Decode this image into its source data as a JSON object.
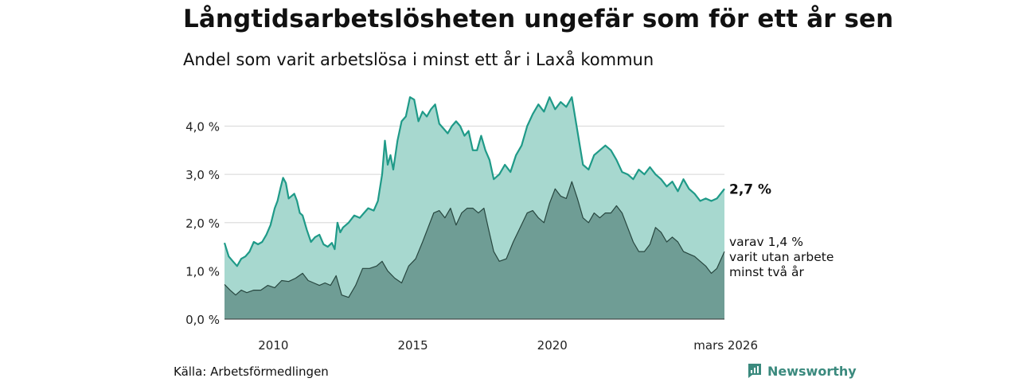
{
  "title": "Långtidsarbetslösheten ungefär som för ett år sen",
  "subtitle": "Andel som varit arbetslösa i minst ett år i Laxå kommun",
  "source": "Källa: Arbetsförmedlingen",
  "brand": "Newsworthy",
  "colors": {
    "upper_fill": "#a7d8cf",
    "upper_line": "#1f9a88",
    "lower_fill": "#6f9d95",
    "lower_line": "#27463f",
    "grid": "#dddddd",
    "brand": "#3b8a7e"
  },
  "chart_data": {
    "type": "area",
    "x_unit": "year (decimal)",
    "xlim": [
      2008.25,
      2026.17
    ],
    "ylim": [
      0,
      4.8
    ],
    "y_ticks": [
      0,
      1,
      2,
      3,
      4
    ],
    "y_tick_labels": [
      "0,0 %",
      "1,0 %",
      "2,0 %",
      "3,0 %",
      "4,0 %"
    ],
    "x_ticks": [
      2010,
      2015,
      2020,
      2026.17
    ],
    "x_tick_labels": [
      "2010",
      "2015",
      "2020",
      "mars 2026"
    ],
    "series": [
      {
        "name": "Minst ett år",
        "end_label": "2,7 %",
        "points": [
          [
            2008.25,
            1.58
          ],
          [
            2008.4,
            1.3
          ],
          [
            2008.55,
            1.2
          ],
          [
            2008.7,
            1.1
          ],
          [
            2008.85,
            1.25
          ],
          [
            2009.0,
            1.3
          ],
          [
            2009.15,
            1.4
          ],
          [
            2009.3,
            1.6
          ],
          [
            2009.45,
            1.55
          ],
          [
            2009.6,
            1.6
          ],
          [
            2009.75,
            1.75
          ],
          [
            2009.9,
            1.95
          ],
          [
            2010.05,
            2.3
          ],
          [
            2010.15,
            2.45
          ],
          [
            2010.25,
            2.7
          ],
          [
            2010.35,
            2.93
          ],
          [
            2010.45,
            2.82
          ],
          [
            2010.55,
            2.5
          ],
          [
            2010.65,
            2.55
          ],
          [
            2010.75,
            2.6
          ],
          [
            2010.85,
            2.45
          ],
          [
            2010.95,
            2.2
          ],
          [
            2011.05,
            2.15
          ],
          [
            2011.2,
            1.85
          ],
          [
            2011.35,
            1.6
          ],
          [
            2011.5,
            1.7
          ],
          [
            2011.65,
            1.75
          ],
          [
            2011.8,
            1.55
          ],
          [
            2011.95,
            1.5
          ],
          [
            2012.1,
            1.58
          ],
          [
            2012.2,
            1.45
          ],
          [
            2012.3,
            2.0
          ],
          [
            2012.4,
            1.8
          ],
          [
            2012.5,
            1.9
          ],
          [
            2012.7,
            2.0
          ],
          [
            2012.9,
            2.15
          ],
          [
            2013.1,
            2.1
          ],
          [
            2013.25,
            2.2
          ],
          [
            2013.4,
            2.3
          ],
          [
            2013.6,
            2.25
          ],
          [
            2013.75,
            2.45
          ],
          [
            2013.9,
            3.0
          ],
          [
            2014.0,
            3.7
          ],
          [
            2014.1,
            3.2
          ],
          [
            2014.2,
            3.4
          ],
          [
            2014.3,
            3.1
          ],
          [
            2014.45,
            3.7
          ],
          [
            2014.6,
            4.1
          ],
          [
            2014.75,
            4.2
          ],
          [
            2014.9,
            4.6
          ],
          [
            2015.05,
            4.55
          ],
          [
            2015.2,
            4.1
          ],
          [
            2015.35,
            4.3
          ],
          [
            2015.5,
            4.2
          ],
          [
            2015.65,
            4.35
          ],
          [
            2015.8,
            4.45
          ],
          [
            2015.95,
            4.05
          ],
          [
            2016.1,
            3.95
          ],
          [
            2016.25,
            3.85
          ],
          [
            2016.4,
            4.0
          ],
          [
            2016.55,
            4.1
          ],
          [
            2016.7,
            4.0
          ],
          [
            2016.85,
            3.8
          ],
          [
            2017.0,
            3.9
          ],
          [
            2017.15,
            3.5
          ],
          [
            2017.3,
            3.5
          ],
          [
            2017.45,
            3.8
          ],
          [
            2017.6,
            3.5
          ],
          [
            2017.75,
            3.3
          ],
          [
            2017.9,
            2.9
          ],
          [
            2018.1,
            3.0
          ],
          [
            2018.3,
            3.2
          ],
          [
            2018.5,
            3.05
          ],
          [
            2018.7,
            3.4
          ],
          [
            2018.9,
            3.6
          ],
          [
            2019.1,
            4.0
          ],
          [
            2019.3,
            4.25
          ],
          [
            2019.5,
            4.45
          ],
          [
            2019.7,
            4.3
          ],
          [
            2019.9,
            4.6
          ],
          [
            2020.1,
            4.35
          ],
          [
            2020.3,
            4.5
          ],
          [
            2020.5,
            4.4
          ],
          [
            2020.7,
            4.6
          ],
          [
            2020.9,
            3.9
          ],
          [
            2021.1,
            3.2
          ],
          [
            2021.3,
            3.1
          ],
          [
            2021.5,
            3.4
          ],
          [
            2021.7,
            3.5
          ],
          [
            2021.9,
            3.6
          ],
          [
            2022.1,
            3.5
          ],
          [
            2022.3,
            3.3
          ],
          [
            2022.5,
            3.05
          ],
          [
            2022.7,
            3.0
          ],
          [
            2022.9,
            2.9
          ],
          [
            2023.1,
            3.1
          ],
          [
            2023.3,
            3.0
          ],
          [
            2023.5,
            3.15
          ],
          [
            2023.7,
            3.0
          ],
          [
            2023.9,
            2.9
          ],
          [
            2024.1,
            2.75
          ],
          [
            2024.3,
            2.85
          ],
          [
            2024.5,
            2.65
          ],
          [
            2024.7,
            2.9
          ],
          [
            2024.9,
            2.7
          ],
          [
            2025.1,
            2.6
          ],
          [
            2025.3,
            2.45
          ],
          [
            2025.5,
            2.5
          ],
          [
            2025.7,
            2.45
          ],
          [
            2025.9,
            2.5
          ],
          [
            2026.17,
            2.7
          ]
        ]
      },
      {
        "name": "varav minst två år",
        "end_label": [
          "varav 1,4 %",
          "varit utan arbete",
          "minst två år"
        ],
        "points": [
          [
            2008.25,
            0.72
          ],
          [
            2008.45,
            0.6
          ],
          [
            2008.65,
            0.5
          ],
          [
            2008.85,
            0.6
          ],
          [
            2009.05,
            0.55
          ],
          [
            2009.3,
            0.6
          ],
          [
            2009.55,
            0.6
          ],
          [
            2009.8,
            0.7
          ],
          [
            2010.05,
            0.65
          ],
          [
            2010.3,
            0.8
          ],
          [
            2010.55,
            0.78
          ],
          [
            2010.8,
            0.85
          ],
          [
            2011.05,
            0.95
          ],
          [
            2011.25,
            0.8
          ],
          [
            2011.45,
            0.75
          ],
          [
            2011.65,
            0.7
          ],
          [
            2011.85,
            0.75
          ],
          [
            2012.05,
            0.7
          ],
          [
            2012.25,
            0.9
          ],
          [
            2012.45,
            0.5
          ],
          [
            2012.7,
            0.45
          ],
          [
            2012.95,
            0.7
          ],
          [
            2013.2,
            1.05
          ],
          [
            2013.45,
            1.05
          ],
          [
            2013.7,
            1.1
          ],
          [
            2013.9,
            1.2
          ],
          [
            2014.1,
            1.0
          ],
          [
            2014.35,
            0.85
          ],
          [
            2014.6,
            0.75
          ],
          [
            2014.85,
            1.1
          ],
          [
            2015.1,
            1.25
          ],
          [
            2015.35,
            1.6
          ],
          [
            2015.55,
            1.9
          ],
          [
            2015.75,
            2.2
          ],
          [
            2015.95,
            2.25
          ],
          [
            2016.15,
            2.1
          ],
          [
            2016.35,
            2.3
          ],
          [
            2016.55,
            1.95
          ],
          [
            2016.75,
            2.2
          ],
          [
            2016.95,
            2.3
          ],
          [
            2017.15,
            2.3
          ],
          [
            2017.35,
            2.2
          ],
          [
            2017.55,
            2.3
          ],
          [
            2017.7,
            1.9
          ],
          [
            2017.9,
            1.4
          ],
          [
            2018.1,
            1.2
          ],
          [
            2018.35,
            1.25
          ],
          [
            2018.6,
            1.6
          ],
          [
            2018.85,
            1.9
          ],
          [
            2019.1,
            2.2
          ],
          [
            2019.3,
            2.25
          ],
          [
            2019.5,
            2.1
          ],
          [
            2019.7,
            2.0
          ],
          [
            2019.9,
            2.4
          ],
          [
            2020.1,
            2.7
          ],
          [
            2020.3,
            2.55
          ],
          [
            2020.5,
            2.5
          ],
          [
            2020.7,
            2.85
          ],
          [
            2020.9,
            2.5
          ],
          [
            2021.1,
            2.1
          ],
          [
            2021.3,
            2.0
          ],
          [
            2021.5,
            2.2
          ],
          [
            2021.7,
            2.1
          ],
          [
            2021.9,
            2.2
          ],
          [
            2022.1,
            2.2
          ],
          [
            2022.3,
            2.35
          ],
          [
            2022.5,
            2.2
          ],
          [
            2022.7,
            1.9
          ],
          [
            2022.9,
            1.6
          ],
          [
            2023.1,
            1.4
          ],
          [
            2023.3,
            1.4
          ],
          [
            2023.5,
            1.55
          ],
          [
            2023.7,
            1.9
          ],
          [
            2023.9,
            1.8
          ],
          [
            2024.1,
            1.6
          ],
          [
            2024.3,
            1.7
          ],
          [
            2024.5,
            1.6
          ],
          [
            2024.7,
            1.4
          ],
          [
            2024.9,
            1.35
          ],
          [
            2025.1,
            1.3
          ],
          [
            2025.3,
            1.2
          ],
          [
            2025.5,
            1.1
          ],
          [
            2025.7,
            0.95
          ],
          [
            2025.9,
            1.05
          ],
          [
            2026.17,
            1.4
          ]
        ]
      }
    ]
  }
}
